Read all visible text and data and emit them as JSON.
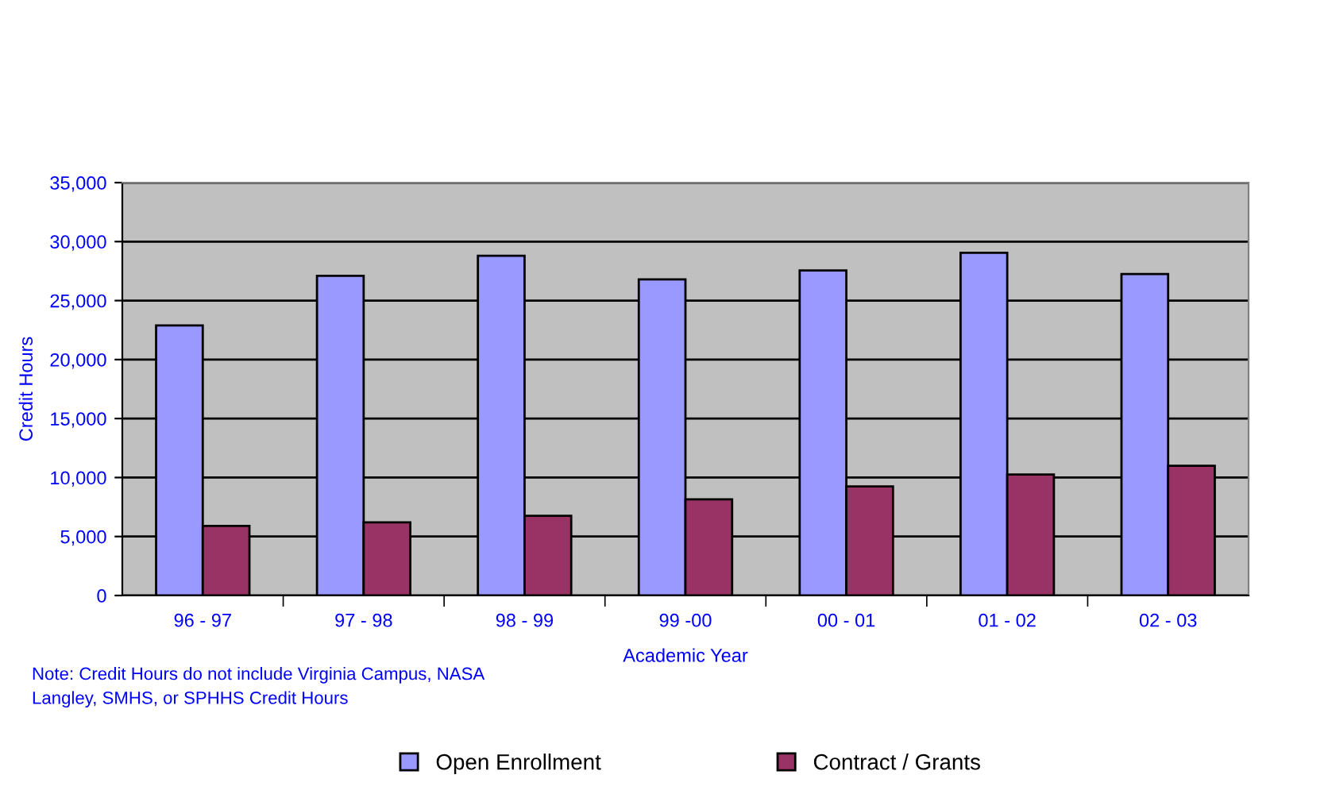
{
  "chart_data": {
    "type": "bar",
    "xlabel": "Academic Year",
    "ylabel": "Credit Hours",
    "categories": [
      "96 - 97",
      "97 - 98",
      "98 - 99",
      "99 -00",
      "00 - 01",
      "01 - 02",
      "02 - 03"
    ],
    "series": [
      {
        "name": "Open Enrollment",
        "color": "#9999ff",
        "values": [
          22900,
          27100,
          28800,
          26800,
          27550,
          29050,
          27250
        ]
      },
      {
        "name": "Contract / Grants",
        "color": "#993366",
        "values": [
          5900,
          6200,
          6750,
          8150,
          9250,
          10250,
          11000
        ]
      }
    ],
    "ylim": [
      0,
      35000
    ],
    "yticks": [
      {
        "value": 0,
        "label": "0"
      },
      {
        "value": 5000,
        "label": "5,000"
      },
      {
        "value": 10000,
        "label": "10,000"
      },
      {
        "value": 15000,
        "label": "15,000"
      },
      {
        "value": 20000,
        "label": "20,000"
      },
      {
        "value": 25000,
        "label": "25,000"
      },
      {
        "value": 30000,
        "label": "30,000"
      },
      {
        "value": 35000,
        "label": "35,000"
      }
    ],
    "grid": "y",
    "legend": "bottom",
    "annotations": [
      "Note: Credit Hours do not include Virginia Campus, NASA Langley, SMHS, or SPHHS Credit Hours"
    ]
  }
}
